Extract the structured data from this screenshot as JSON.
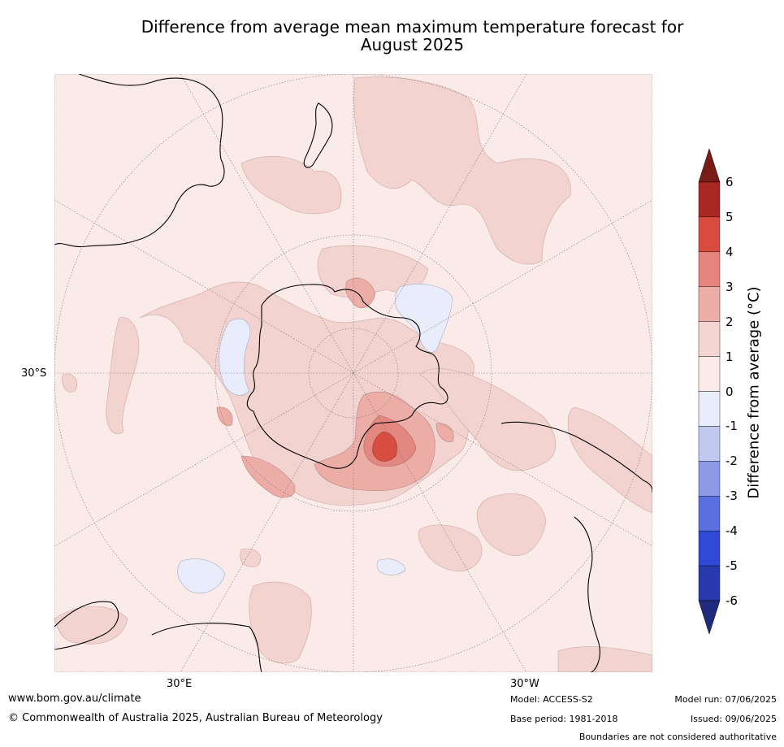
{
  "title": {
    "line1": "Difference from average mean maximum temperature forecast for",
    "line2": "August 2025"
  },
  "map": {
    "projection": "south-polar stereographic",
    "lat_label": "30°S",
    "lon_labels": [
      "30°E",
      "30°W"
    ],
    "regions_shown": [
      "Antarctica",
      "Australia",
      "New Zealand",
      "South America",
      "Southern Africa"
    ],
    "colors": {
      "near_average": "#fbebe8",
      "warm_1_2": "#f3d3d0",
      "warm_2_3": "#ecada7",
      "warm_3_4": "#e38781",
      "warm_4_5": "#d84d41",
      "cool_0_m1": "#e9ecfa"
    }
  },
  "colorbar": {
    "title": "Difference from average (°C)",
    "tick_labels": [
      "6",
      "5",
      "4",
      "3",
      "2",
      "1",
      "0",
      "-1",
      "-2",
      "-3",
      "-4",
      "-5",
      "-6"
    ],
    "colors_top_to_bottom": [
      "#a92822",
      "#d94b3e",
      "#e5847c",
      "#edaea8",
      "#f5d5d2",
      "#fbebe8",
      "#e9ecfa",
      "#c2c9f1",
      "#8c9ae8",
      "#5b70e0",
      "#2f49d9",
      "#2739ac"
    ],
    "extend_high_color": "#7a1b16",
    "extend_low_color": "#1f2b7c"
  },
  "footer": {
    "website": "www.bom.gov.au/climate",
    "copyright": "© Commonwealth of Australia 2025, Australian Bureau of Meteorology",
    "model": "Model: ACCESS-S2",
    "base_period": "Base period: 1981-2018",
    "model_run": "Model run: 07/06/2025",
    "issued": "Issued: 09/06/2025",
    "disclaimer": "Boundaries are not considered authoritative"
  }
}
